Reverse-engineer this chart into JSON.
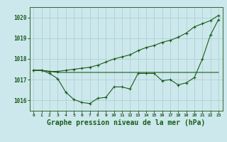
{
  "background_color": "#cce8ec",
  "grid_color": "#aacccc",
  "line_color": "#1a5c1a",
  "marker_color": "#1a5c1a",
  "xlabel": "Graphe pression niveau de la mer (hPa)",
  "xlabel_fontsize": 7,
  "ylim": [
    1015.5,
    1020.5
  ],
  "xlim": [
    -0.5,
    23.5
  ],
  "yticks": [
    1016,
    1017,
    1018,
    1019,
    1020
  ],
  "xticks": [
    0,
    1,
    2,
    3,
    4,
    5,
    6,
    7,
    8,
    9,
    10,
    11,
    12,
    13,
    14,
    15,
    16,
    17,
    18,
    19,
    20,
    21,
    22,
    23
  ],
  "line1_x": [
    0,
    1,
    2,
    3,
    4,
    5,
    6,
    7,
    8,
    9,
    10,
    11,
    12,
    13,
    14,
    15,
    16,
    17,
    18,
    19,
    20,
    21,
    22,
    23
  ],
  "line1_y": [
    1017.45,
    1017.45,
    1017.3,
    1017.05,
    1016.4,
    1016.05,
    1015.9,
    1015.85,
    1016.1,
    1016.15,
    1016.65,
    1016.65,
    1016.55,
    1017.3,
    1017.3,
    1017.3,
    1016.95,
    1017.0,
    1016.75,
    1016.85,
    1017.1,
    1018.0,
    1019.15,
    1019.9
  ],
  "line2_x": [
    0,
    1,
    2,
    3,
    4,
    5,
    6,
    7,
    8,
    9,
    10,
    11,
    12,
    13,
    14,
    15,
    16,
    17,
    18,
    19,
    20,
    21,
    22,
    23
  ],
  "line2_y": [
    1017.45,
    1017.45,
    1017.4,
    1017.4,
    1017.45,
    1017.5,
    1017.55,
    1017.6,
    1017.7,
    1017.85,
    1018.0,
    1018.1,
    1018.2,
    1018.4,
    1018.55,
    1018.65,
    1018.8,
    1018.9,
    1019.05,
    1019.25,
    1019.55,
    1019.7,
    1019.85,
    1020.1
  ],
  "line3_x": [
    0,
    1,
    2,
    3,
    4,
    5,
    6,
    7,
    8,
    9,
    10,
    11,
    12,
    13,
    14,
    15,
    16,
    17,
    18,
    19,
    20,
    21,
    22,
    23
  ],
  "line3_y": [
    1017.45,
    1017.45,
    1017.4,
    1017.35,
    1017.35,
    1017.35,
    1017.35,
    1017.35,
    1017.35,
    1017.35,
    1017.35,
    1017.35,
    1017.35,
    1017.35,
    1017.35,
    1017.35,
    1017.35,
    1017.35,
    1017.35,
    1017.35,
    1017.35,
    1017.35,
    1017.35,
    1017.35
  ]
}
